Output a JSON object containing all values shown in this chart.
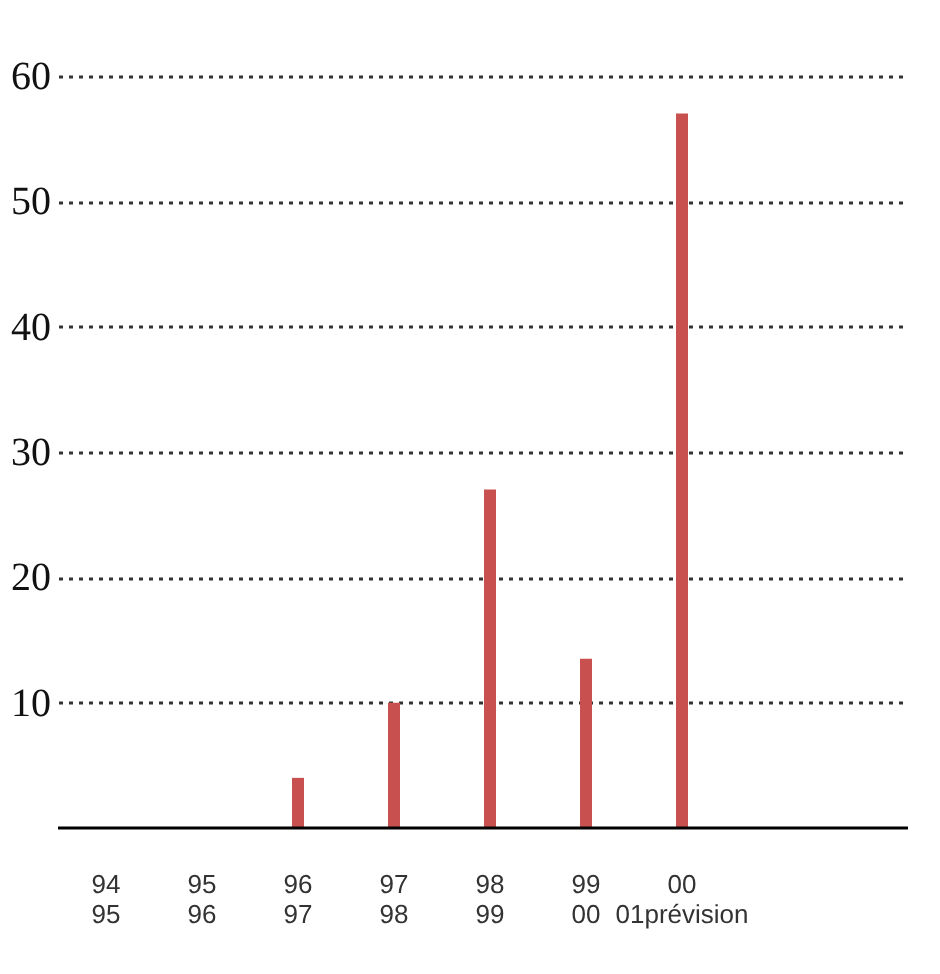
{
  "chart_data": {
    "type": "bar",
    "categories": [
      "94\n95",
      "95\n96",
      "96\n97",
      "97\n98",
      "98\n99",
      "99\n00",
      "00\n01prévision"
    ],
    "values": [
      0,
      0,
      4,
      10,
      27,
      13.5,
      57
    ],
    "color": "#c8514f",
    "ylim": [
      0,
      60
    ],
    "yticks": [
      10,
      20,
      30,
      40,
      50,
      60
    ],
    "grid": "y",
    "line_style": "dotted"
  }
}
